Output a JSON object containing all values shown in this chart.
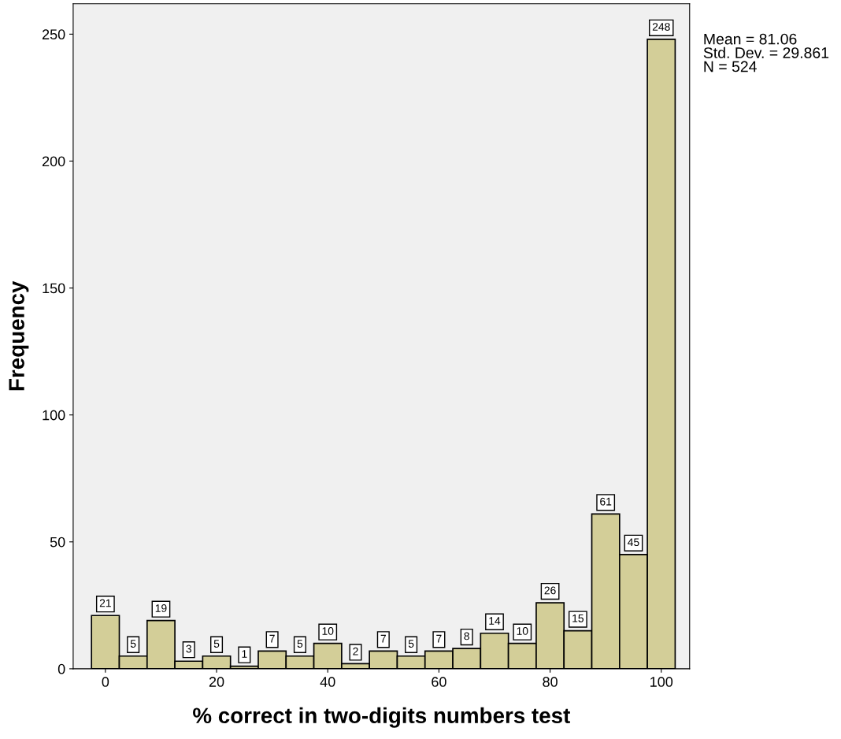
{
  "chart_data": {
    "type": "histogram",
    "xlabel": "% correct in two-digits numbers test",
    "ylabel": "Frequency",
    "bins": [
      -2.5,
      2.5,
      7.5,
      12.5,
      17.5,
      22.5,
      27.5,
      32.5,
      37.5,
      42.5,
      47.5,
      52.5,
      57.5,
      62.5,
      67.5,
      72.5,
      77.5,
      82.5,
      87.5,
      92.5,
      97.5,
      102.5
    ],
    "values": [
      21,
      5,
      19,
      3,
      5,
      1,
      7,
      5,
      10,
      2,
      7,
      5,
      7,
      8,
      14,
      10,
      26,
      15,
      61,
      45,
      248
    ],
    "color": "#d3ce98",
    "data_labels": true,
    "xlim": [
      -5.8,
      105.1
    ],
    "xticks": [
      0,
      20,
      40,
      60,
      80,
      100
    ],
    "ylim": [
      0,
      262
    ],
    "yticks": [
      0,
      50,
      100,
      150,
      200,
      250
    ],
    "grid": false,
    "annotations": [
      "Mean = 81.06\nStd. Dev. = 29.861\nN = 524"
    ]
  }
}
